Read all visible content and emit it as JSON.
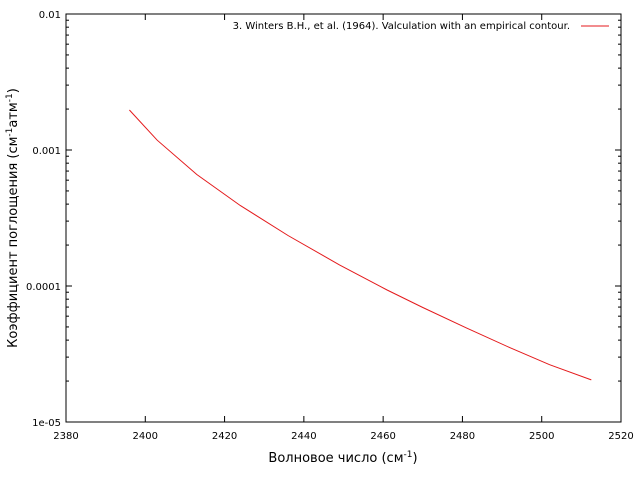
{
  "chart_data": {
    "type": "line",
    "title": "",
    "xlabel": "Волновое число (см",
    "xlabel_sup": "-1",
    "xlabel_end": ")",
    "ylabel_parts": [
      "Коэффициент поглощения (см",
      "-1",
      "атм",
      "-1",
      ")"
    ],
    "xlim": [
      2380,
      2520
    ],
    "ylim": [
      1e-05,
      0.01
    ],
    "yscale": "log",
    "x_ticks": [
      "2380",
      "2400",
      "2420",
      "2440",
      "2460",
      "2480",
      "2500",
      "2520"
    ],
    "y_ticks": [
      "1e-05",
      "0.0001",
      "0.001",
      "0.01"
    ],
    "grid": false,
    "legend_position": "top-right",
    "series": [
      {
        "name": "3. Winters B.H., et al. (1964). Valculation with an empirical contour.",
        "color": "#e41a1c",
        "x": [
          2396,
          2403,
          2413,
          2424,
          2436,
          2449,
          2461,
          2470,
          2481,
          2492,
          2502,
          2512.5
        ],
        "y": [
          0.00197,
          0.00118,
          0.00066,
          0.00039,
          0.000235,
          0.000143,
          9.35e-05,
          6.95e-05,
          4.92e-05,
          3.52e-05,
          2.64e-05,
          2.04e-05
        ]
      }
    ]
  }
}
